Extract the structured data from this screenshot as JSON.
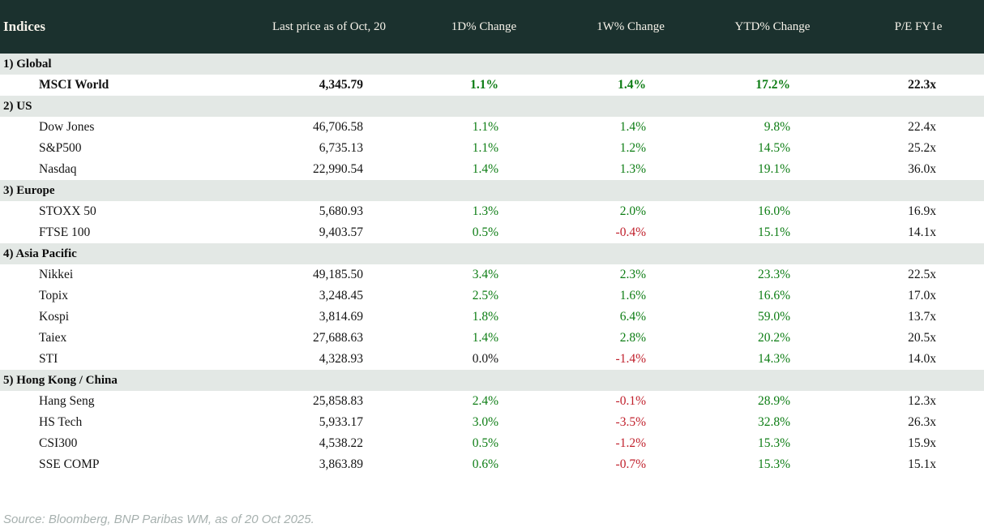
{
  "chart_data": {
    "type": "table",
    "title": "Indices",
    "columns": [
      "Indices",
      "Last price as of Oct, 20",
      "1D% Change",
      "1W% Change",
      "YTD% Change",
      "P/E FY1e"
    ],
    "sections": [
      {
        "label": "1) Global",
        "rows": [
          {
            "name": "MSCI World",
            "last_price": "4,345.79",
            "d1_change": "1.1%",
            "w1_change": "1.4%",
            "ytd_change": "17.2%",
            "pe_fy1e": "22.3x",
            "bold": true
          }
        ]
      },
      {
        "label": "2) US",
        "rows": [
          {
            "name": "Dow Jones",
            "last_price": "46,706.58",
            "d1_change": "1.1%",
            "w1_change": "1.4%",
            "ytd_change": "9.8%",
            "pe_fy1e": "22.4x",
            "bold": false
          },
          {
            "name": "S&P500",
            "last_price": "6,735.13",
            "d1_change": "1.1%",
            "w1_change": "1.2%",
            "ytd_change": "14.5%",
            "pe_fy1e": "25.2x",
            "bold": false
          },
          {
            "name": "Nasdaq",
            "last_price": "22,990.54",
            "d1_change": "1.4%",
            "w1_change": "1.3%",
            "ytd_change": "19.1%",
            "pe_fy1e": "36.0x",
            "bold": false
          }
        ]
      },
      {
        "label": "3) Europe",
        "rows": [
          {
            "name": "STOXX 50",
            "last_price": "5,680.93",
            "d1_change": "1.3%",
            "w1_change": "2.0%",
            "ytd_change": "16.0%",
            "pe_fy1e": "16.9x",
            "bold": false
          },
          {
            "name": "FTSE 100",
            "last_price": "9,403.57",
            "d1_change": "0.5%",
            "w1_change": "-0.4%",
            "ytd_change": "15.1%",
            "pe_fy1e": "14.1x",
            "bold": false
          }
        ]
      },
      {
        "label": "4) Asia Pacific",
        "rows": [
          {
            "name": "Nikkei",
            "last_price": "49,185.50",
            "d1_change": "3.4%",
            "w1_change": "2.3%",
            "ytd_change": "23.3%",
            "pe_fy1e": "22.5x",
            "bold": false
          },
          {
            "name": "Topix",
            "last_price": "3,248.45",
            "d1_change": "2.5%",
            "w1_change": "1.6%",
            "ytd_change": "16.6%",
            "pe_fy1e": "17.0x",
            "bold": false
          },
          {
            "name": "Kospi",
            "last_price": "3,814.69",
            "d1_change": "1.8%",
            "w1_change": "6.4%",
            "ytd_change": "59.0%",
            "pe_fy1e": "13.7x",
            "bold": false
          },
          {
            "name": "Taiex",
            "last_price": "27,688.63",
            "d1_change": "1.4%",
            "w1_change": "2.8%",
            "ytd_change": "20.2%",
            "pe_fy1e": "20.5x",
            "bold": false
          },
          {
            "name": "STI",
            "last_price": "4,328.93",
            "d1_change": "0.0%",
            "w1_change": "-1.4%",
            "ytd_change": "14.3%",
            "pe_fy1e": "14.0x",
            "bold": false
          }
        ]
      },
      {
        "label": "5) Hong Kong / China",
        "rows": [
          {
            "name": "Hang Seng",
            "last_price": "25,858.83",
            "d1_change": "2.4%",
            "w1_change": "-0.1%",
            "ytd_change": "28.9%",
            "pe_fy1e": "12.3x",
            "bold": false
          },
          {
            "name": "HS Tech",
            "last_price": "5,933.17",
            "d1_change": "3.0%",
            "w1_change": "-3.5%",
            "ytd_change": "32.8%",
            "pe_fy1e": "26.3x",
            "bold": false
          },
          {
            "name": "CSI300",
            "last_price": "4,538.22",
            "d1_change": "0.5%",
            "w1_change": "-1.2%",
            "ytd_change": "15.3%",
            "pe_fy1e": "15.9x",
            "bold": false
          },
          {
            "name": "SSE COMP",
            "last_price": "3,863.89",
            "d1_change": "0.6%",
            "w1_change": "-0.7%",
            "ytd_change": "15.3%",
            "pe_fy1e": "15.1x",
            "bold": false
          }
        ]
      }
    ]
  },
  "footer": {
    "source": "Source: Bloomberg, BNP Paribas WM, as of 20 Oct 2025."
  },
  "colors": {
    "positive": "#0d7d14",
    "negative": "#c0202c",
    "neutral": "#141414",
    "header_bg": "#1b312e",
    "header_text": "#f7f3ea",
    "section_row_bg": "#e3e8e5"
  }
}
